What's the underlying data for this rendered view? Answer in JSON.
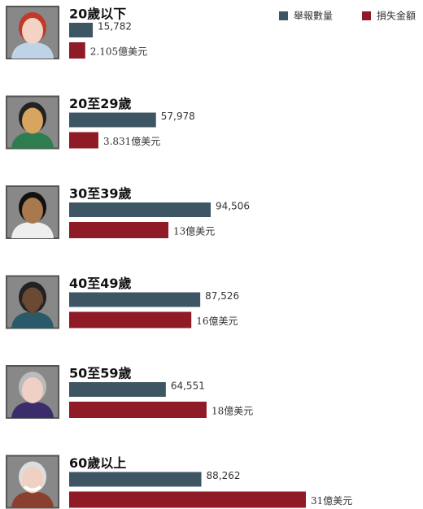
{
  "chart_data": {
    "type": "bar",
    "orientation": "horizontal",
    "categories": [
      "20歲以下",
      "20至29歲",
      "30至39歲",
      "40至49歲",
      "50至59歲",
      "60歲以上"
    ],
    "series": [
      {
        "name": "舉報數量",
        "color": "#3e5563",
        "values": [
          15782,
          57978,
          94506,
          87526,
          64551,
          88262
        ],
        "value_labels": [
          "15,782",
          "57,978",
          "94,506",
          "87,526",
          "64,551",
          "88,262"
        ]
      },
      {
        "name": "損失金額",
        "color": "#8e1b26",
        "values": [
          2.105,
          3.831,
          13,
          16,
          18,
          31
        ],
        "value_labels": [
          "2.105億美元",
          "3.831億美元",
          "13億美元",
          "16億美元",
          "18億美元",
          "31億美元"
        ]
      }
    ],
    "legend": "top-right"
  }
}
